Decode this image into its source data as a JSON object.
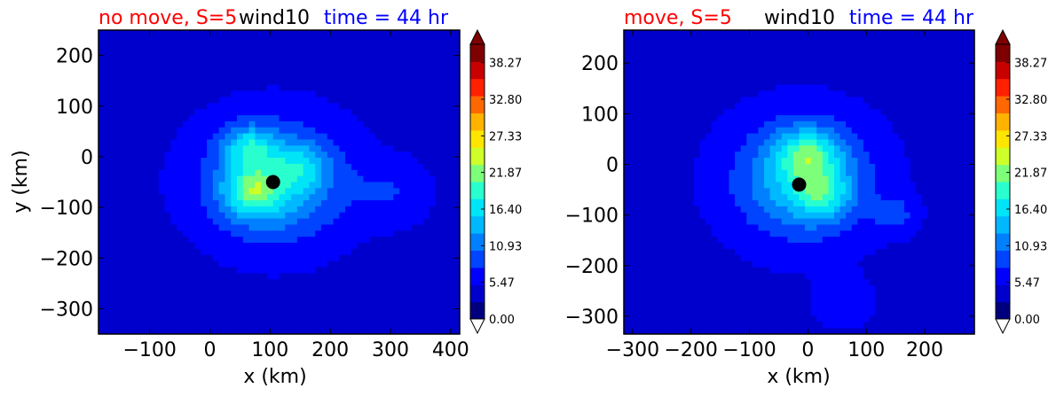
{
  "chart_data": [
    {
      "type": "heatmap",
      "title_left": "no move, S=5",
      "title_center": "wind10",
      "title_right": "time = 44 hr",
      "xlabel": "x (km)",
      "ylabel": "y (km)",
      "xlim": [
        -185,
        415
      ],
      "ylim": [
        -350,
        250
      ],
      "xticks": [
        "−100",
        "0",
        "100",
        "200",
        "300",
        "400"
      ],
      "xtick_values": [
        -100,
        0,
        100,
        200,
        300,
        400
      ],
      "yticks": [
        "200",
        "100",
        "0",
        "−100",
        "−200",
        "−300"
      ],
      "ytick_values": [
        200,
        100,
        0,
        -100,
        -200,
        -300
      ],
      "center_marker": {
        "x": 105,
        "y": -50
      },
      "colorbar": {
        "min": 0.0,
        "max": 41.0,
        "extend": "both",
        "tick_labels": [
          "38.27",
          "32.80",
          "27.33",
          "21.87",
          "16.40",
          "10.93",
          "5.47",
          "0.00"
        ],
        "tick_values": [
          38.27,
          32.8,
          27.33,
          21.87,
          16.4,
          10.93,
          5.47,
          0.0
        ]
      },
      "field": {
        "background": 4.5,
        "features": [
          {
            "x": 105,
            "y": -50,
            "peak": 11,
            "radius": 110
          },
          {
            "x": 70,
            "y": -70,
            "peak": 9,
            "radius": 45
          },
          {
            "x": 65,
            "y": 20,
            "peak": 8,
            "radius": 40
          },
          {
            "x": 150,
            "y": -20,
            "peak": 5,
            "radius": 45
          },
          {
            "x": 300,
            "y": -70,
            "peak": 3,
            "radius": 60
          },
          {
            "x": -100,
            "y": -300,
            "peak": -1.5,
            "radius": 80
          }
        ]
      }
    },
    {
      "type": "heatmap",
      "title_left": "move, S=5",
      "title_center": "wind10",
      "title_right": "time = 44 hr",
      "xlabel": "x (km)",
      "ylabel": "",
      "xlim": [
        -315,
        285
      ],
      "ylim": [
        -335,
        265
      ],
      "xticks": [
        "−300",
        "−200",
        "−100",
        "0",
        "100",
        "200"
      ],
      "xtick_values": [
        -300,
        -200,
        -100,
        0,
        100,
        200
      ],
      "yticks": [
        "200",
        "100",
        "0",
        "−100",
        "−200",
        "−300"
      ],
      "ytick_values": [
        200,
        100,
        0,
        -100,
        -200,
        -300
      ],
      "center_marker": {
        "x": -15,
        "y": -40
      },
      "colorbar": {
        "min": 0.0,
        "max": 41.0,
        "extend": "both",
        "tick_labels": [
          "38.27",
          "32.80",
          "27.33",
          "21.87",
          "16.40",
          "10.93",
          "5.47",
          "0.00"
        ],
        "tick_values": [
          38.27,
          32.8,
          27.33,
          21.87,
          16.4,
          10.93,
          5.47,
          0.0
        ]
      },
      "field": {
        "background": 4.5,
        "features": [
          {
            "x": -10,
            "y": -30,
            "peak": 11,
            "radius": 110
          },
          {
            "x": 0,
            "y": 20,
            "peak": 9,
            "radius": 50
          },
          {
            "x": 25,
            "y": -60,
            "peak": 7,
            "radius": 45
          },
          {
            "x": 150,
            "y": -100,
            "peak": 4,
            "radius": 35
          },
          {
            "x": 60,
            "y": -270,
            "peak": 3,
            "radius": 45
          },
          {
            "x": -250,
            "y": -210,
            "peak": -1.5,
            "radius": 60
          }
        ]
      }
    }
  ],
  "colors": {
    "jet": [
      "#00007f",
      "#0000cc",
      "#0000ff",
      "#0044ff",
      "#0080ff",
      "#00b8ff",
      "#00e4f8",
      "#29ffce",
      "#7dff7a",
      "#ceff29",
      "#ffe600",
      "#ffb200",
      "#ff6800",
      "#ff2000",
      "#c80000",
      "#7f0000"
    ],
    "title_left": "#ff0000",
    "title_right": "#0000ff"
  }
}
